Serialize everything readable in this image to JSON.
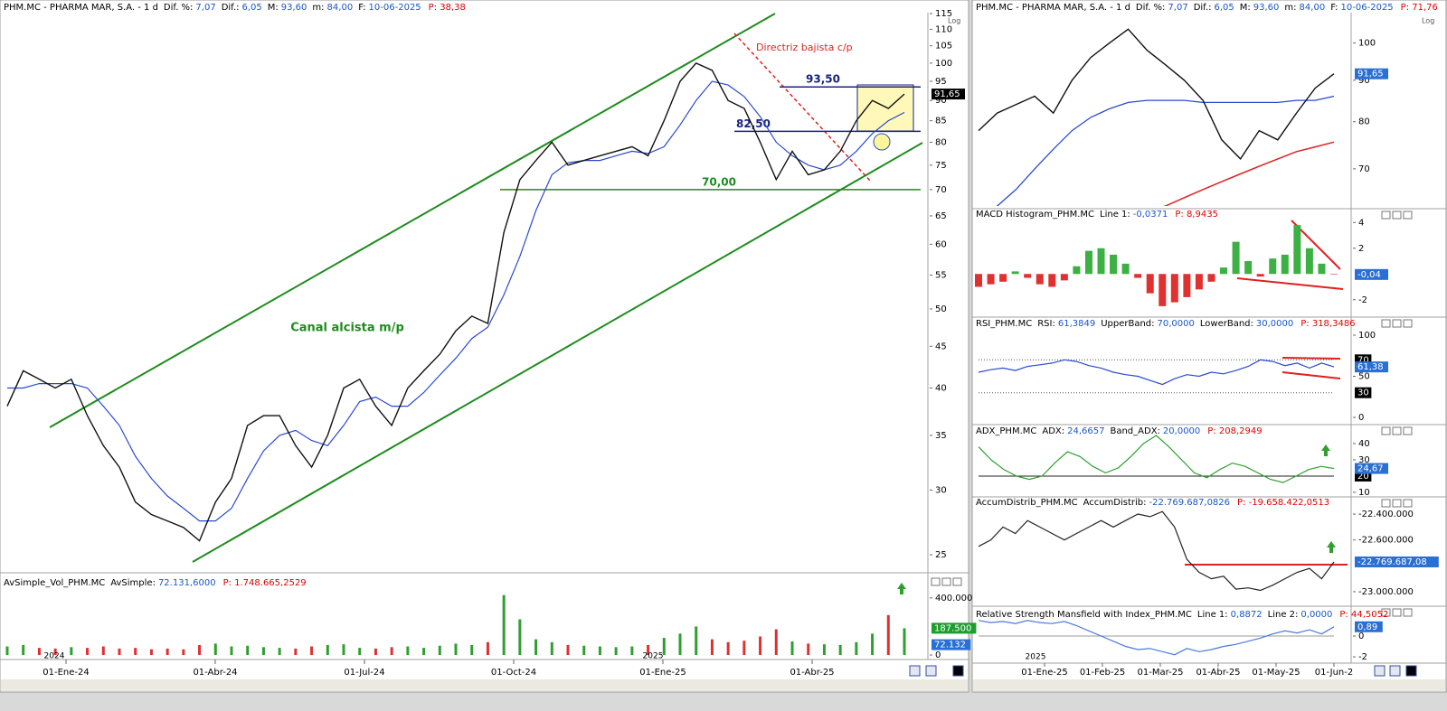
{
  "left": {
    "header": {
      "name": "PHM.MC - PHARMA MAR, S.A. - 1 d",
      "fields": [
        {
          "label": "Dif. %:",
          "value": "7,07"
        },
        {
          "label": "Dif.:",
          "value": "6,05"
        },
        {
          "label": "M:",
          "value": "93,60"
        },
        {
          "label": "m:",
          "value": "84,00"
        },
        {
          "label": "F:",
          "value": "10-06-2025"
        }
      ],
      "p": "P: 38,38"
    },
    "price": {
      "log_scale": true,
      "ylim": [
        25,
        115
      ],
      "yticks": [
        25,
        30,
        35,
        40,
        45,
        50,
        55,
        60,
        65,
        70,
        75,
        80,
        85,
        90,
        95,
        100,
        105,
        110,
        115
      ],
      "button": "Log",
      "close": [
        38,
        42,
        41,
        40,
        41,
        37,
        34,
        32,
        29,
        28,
        27.5,
        27,
        26,
        29,
        31,
        36,
        37,
        37,
        34,
        32,
        35,
        40,
        41,
        38,
        36,
        40,
        42,
        44,
        47,
        49,
        48,
        62,
        72,
        76,
        80,
        75,
        76,
        77,
        78,
        79,
        77,
        85,
        95,
        100,
        98,
        90,
        88,
        80,
        72,
        78,
        73,
        74,
        78,
        85,
        90,
        88,
        91.65
      ],
      "ma_blue": [
        40,
        40,
        40.5,
        40.5,
        40.5,
        40,
        38,
        36,
        33,
        31,
        29.5,
        28.5,
        27.5,
        27.5,
        28.5,
        31,
        33.5,
        35,
        35.5,
        34.5,
        34,
        36,
        38.5,
        39,
        38,
        38,
        39.5,
        41.5,
        43.5,
        46,
        47.5,
        52,
        58,
        66,
        73,
        75.5,
        76,
        76,
        77,
        78,
        77.5,
        79,
        84,
        90,
        95,
        94,
        91,
        86,
        80,
        77,
        75,
        74,
        75,
        78,
        82,
        85,
        87
      ],
      "boxes": [
        {
          "value": 91.65,
          "label": "91,65"
        }
      ],
      "box_colors": [
        "#000000"
      ],
      "levels": [
        {
          "value": 93.5,
          "label": "93,50"
        },
        {
          "value": 82.5,
          "label": "82,50"
        },
        {
          "value": 70,
          "label": "70,00"
        }
      ],
      "annotations": [
        "Canal alcista m/p",
        "Directriz bajista c/p"
      ]
    },
    "volume": {
      "header": {
        "name": "AvSimple_Vol_PHM.MC",
        "fields": [
          {
            "label": "AvSimple:",
            "value": "72.131,6000"
          }
        ],
        "p": "P: 1.748.665,2529"
      },
      "ylim": [
        0,
        475000
      ],
      "yticks": [
        0,
        {
          "value": 400000,
          "label": "400.000"
        }
      ],
      "values": [
        60000,
        70000,
        50000,
        45000,
        55000,
        50000,
        60000,
        45000,
        50000,
        40000,
        45000,
        40000,
        70000,
        80000,
        60000,
        65000,
        55000,
        50000,
        45000,
        60000,
        70000,
        75000,
        50000,
        45000,
        55000,
        60000,
        50000,
        65000,
        80000,
        70000,
        90000,
        420000,
        250000,
        110000,
        90000,
        70000,
        65000,
        60000,
        55000,
        60000,
        70000,
        120000,
        150000,
        200000,
        110000,
        90000,
        100000,
        130000,
        180000,
        95000,
        80000,
        75000,
        70000,
        90000,
        150000,
        280000,
        187500
      ],
      "boxes": [
        {
          "value": 187500,
          "label": "187.500"
        },
        {
          "value": 72132,
          "label": "72.132"
        }
      ],
      "box_colors": [
        "#1e9e2e",
        "#2a6fd6"
      ]
    },
    "x_axis": {
      "years": [
        "2024",
        "2025"
      ],
      "labels": [
        "01-Ene-24",
        "01-Abr-24",
        "01-Jul-24",
        "01-Oct-24",
        "01-Ene-25",
        "01-Abr-25"
      ]
    }
  },
  "right": {
    "price": {
      "header": {
        "name": "PHM.MC - PHARMA MAR, S.A. - 1 d",
        "fields": [
          {
            "label": "Dif. %:",
            "value": "7,07"
          },
          {
            "label": "Dif.:",
            "value": "6,05"
          },
          {
            "label": "M:",
            "value": "93,60"
          },
          {
            "label": "m:",
            "value": "84,00"
          },
          {
            "label": "F:",
            "value": "10-06-2025"
          }
        ],
        "p": "P: 71,76"
      },
      "log_scale": true,
      "ylim": [
        63,
        109
      ],
      "yticks": [
        70,
        80,
        90,
        100
      ],
      "button": "Log",
      "close": [
        78,
        82,
        84,
        86,
        82,
        90,
        96,
        100,
        104,
        98,
        94,
        90,
        85,
        76,
        72,
        78,
        76,
        82,
        88,
        91.65
      ],
      "ma_blue": [
        60,
        63,
        66,
        70,
        74,
        78,
        81,
        83,
        84.5,
        85,
        85,
        85,
        84.5,
        84.5,
        84.5,
        84.5,
        84.5,
        85,
        85,
        86
      ],
      "ma_red": [
        null,
        null,
        null,
        null,
        null,
        null,
        null,
        null,
        null,
        62,
        63,
        64.5,
        66,
        67.5,
        69,
        70.5,
        72,
        73.5,
        74.5,
        75.5
      ],
      "boxes": [
        {
          "value": 91.65,
          "label": "91,65"
        }
      ],
      "box_colors": [
        "#2a6fd6"
      ]
    },
    "macd": {
      "header": {
        "name": "MACD Histogram_PHM.MC",
        "fields": [
          {
            "label": "Line 1:",
            "value": "-0,0371"
          }
        ],
        "p": "P: 8,9435"
      },
      "ylim": [
        -3,
        4.3
      ],
      "yticks": [
        -2,
        2,
        4
      ],
      "values": [
        -1,
        -0.8,
        -0.6,
        0.2,
        -0.3,
        -0.8,
        -1,
        -0.5,
        0.6,
        1.8,
        2,
        1.5,
        0.8,
        -0.3,
        -1.5,
        -2.5,
        -2.2,
        -1.8,
        -1.2,
        -0.6,
        0.5,
        2.5,
        1,
        -0.2,
        1.2,
        1.5,
        3.8,
        2,
        0.8,
        -0.04
      ],
      "boxes": [
        {
          "value": -0.04,
          "label": "-0,04"
        }
      ],
      "box_colors": [
        "#2a6fd6"
      ]
    },
    "rsi": {
      "header": {
        "name": "RSI_PHM.MC",
        "fields": [
          {
            "label": "RSI:",
            "value": "61,3849"
          },
          {
            "label": "UpperBand:",
            "value": "70,0000"
          },
          {
            "label": "LowerBand:",
            "value": "30,0000"
          }
        ],
        "p": "P: 318,3486"
      },
      "ylim": [
        -5.5,
        107.7
      ],
      "yticks": [
        0,
        50,
        100
      ],
      "values": [
        55,
        58,
        60,
        57,
        62,
        64,
        66,
        70,
        68,
        63,
        60,
        55,
        52,
        50,
        45,
        40,
        47,
        52,
        50,
        55,
        53,
        57,
        62,
        70,
        68,
        63,
        66,
        60,
        66,
        61.38
      ],
      "boxes": [
        70,
        {
          "value": 61.38,
          "label": "61,38"
        },
        30
      ],
      "box_colors": [
        "#000000",
        "#2a6fd6",
        "#000000"
      ]
    },
    "adx": {
      "header": {
        "name": "ADX_PHM.MC",
        "fields": [
          {
            "label": "ADX:",
            "value": "24,6657"
          },
          {
            "label": "Band_ADX:",
            "value": "20,0000"
          }
        ],
        "p": "P: 208,2949"
      },
      "ylim": [
        8.3,
        46.1
      ],
      "yticks": [
        10,
        30,
        40
      ],
      "values": [
        38,
        30,
        24,
        20,
        18,
        20,
        28,
        35,
        32,
        26,
        22,
        25,
        32,
        40,
        45,
        38,
        30,
        22,
        19,
        24,
        28,
        26,
        22,
        18,
        16,
        20,
        24,
        26,
        24.67
      ],
      "boxes": [
        20,
        {
          "value": 24.67,
          "label": "24,67"
        }
      ],
      "box_colors": [
        "#000000",
        "#2a6fd6"
      ]
    },
    "accum": {
      "header": {
        "name": "AccumDistrib_PHM.MC",
        "fields": [
          {
            "label": "AccumDistrib:",
            "value": "-22.769.687,0826"
          }
        ],
        "p": "P: -19.658.422,0513"
      },
      "ylim": [
        -23091000,
        -22316000
      ],
      "yticks": [
        {
          "value": -22400000,
          "label": "-22.400.000"
        },
        {
          "value": -22600000,
          "label": "-22.600.000"
        },
        {
          "value": -23000000,
          "label": "-23.000.000"
        }
      ],
      "values": [
        -22650000,
        -22600000,
        -22500000,
        -22550000,
        -22450000,
        -22500000,
        -22550000,
        -22600000,
        -22550000,
        -22500000,
        -22450000,
        -22500000,
        -22450000,
        -22400000,
        -22420000,
        -22380000,
        -22500000,
        -22750000,
        -22850000,
        -22900000,
        -22880000,
        -22980000,
        -22970000,
        -22990000,
        -22950000,
        -22900000,
        -22850000,
        -22820000,
        -22900000,
        -22769687.08
      ],
      "boxes": [
        {
          "value": -22769687.08,
          "label": "-22.769.687,08"
        }
      ],
      "box_colors": [
        "#2a6fd6"
      ]
    },
    "rs": {
      "header": {
        "name": "Relative Strength Mansfield with Index_PHM.MC",
        "fields": [
          {
            "label": "Line 1:",
            "value": "0,8872"
          },
          {
            "label": "Line 2:",
            "value": "0,0000"
          }
        ],
        "p": "P: 44,5052"
      },
      "ylim": [
        -2.43,
        1.74
      ],
      "yticks": [
        -2,
        0
      ],
      "values": [
        1.5,
        1.3,
        1.4,
        1.2,
        1.5,
        1.3,
        1.2,
        1.4,
        1,
        0.5,
        0,
        -0.5,
        -1,
        -1.3,
        -1.2,
        -1.5,
        -1.8,
        -1.2,
        -1.5,
        -1.3,
        -1,
        -0.8,
        -0.5,
        -0.2,
        0.2,
        0.5,
        0.3,
        0.6,
        0.2,
        0.89
      ],
      "boxes": [
        {
          "value": 0.89,
          "label": "0,89"
        }
      ],
      "box_colors": [
        "#2a6fd6"
      ]
    },
    "x_axis": {
      "years": [
        "2025"
      ],
      "labels": [
        "01-Ene-25",
        "01-Feb-25",
        "01-Mar-25",
        "01-Abr-25",
        "01-May-25",
        "01-Jun-2"
      ]
    }
  }
}
